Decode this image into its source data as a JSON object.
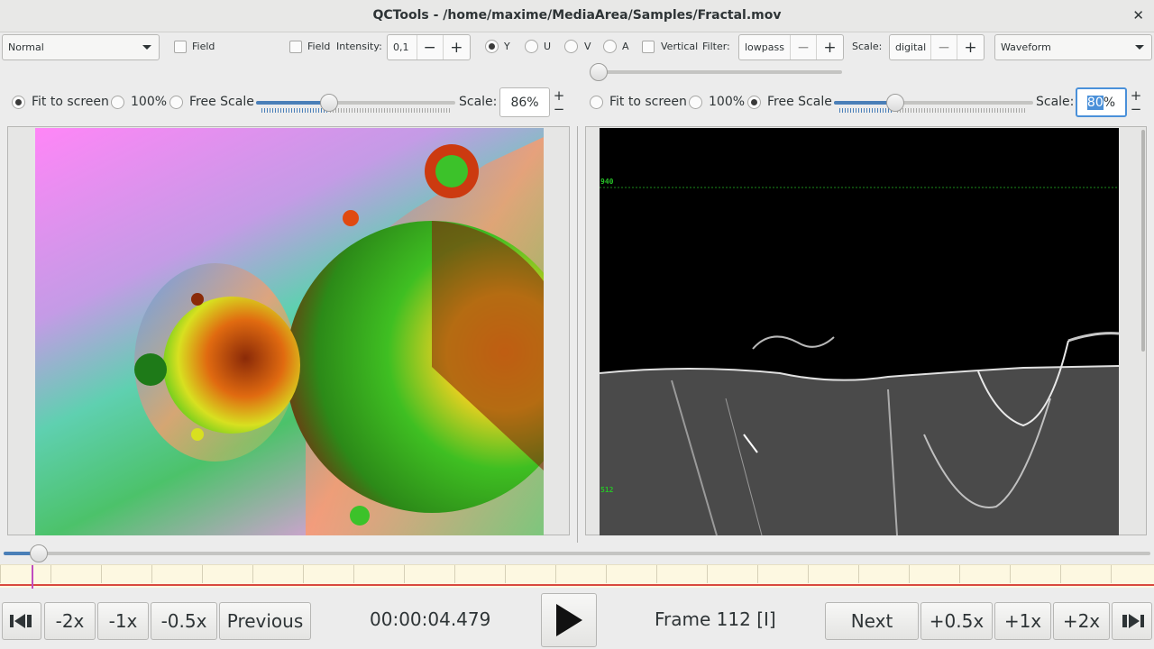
{
  "window": {
    "title": "QCTools - /home/maxime/MediaArea/Samples/Fractal.mov"
  },
  "toolbar": {
    "left_mode": "Normal",
    "left_field": "Field",
    "right_field": "Field",
    "intensity_label": "Intensity:",
    "intensity_value": "0,1",
    "channels": [
      "Y",
      "U",
      "V",
      "A"
    ],
    "selected_channel": "Y",
    "vertical_label": "Vertical",
    "filter_label": "Filter:",
    "filter_value": "lowpass",
    "scale_label": "Scale:",
    "scale_value": "digital",
    "right_mode": "Waveform",
    "minus": "−",
    "plus": "+"
  },
  "left_view": {
    "fit_label": "Fit to screen",
    "pct100_label": "100%",
    "free_label": "Free Scale",
    "selected": "Fit to screen",
    "scale_label": "Scale:",
    "scale_value": "86%"
  },
  "right_view": {
    "fit_label": "Fit to screen",
    "pct100_label": "100%",
    "free_label": "Free Scale",
    "selected": "Free Scale",
    "scale_label": "Scale:",
    "scale_value_sel": "80",
    "scale_value_rest": "%",
    "waveform_labels": [
      "940",
      "512"
    ]
  },
  "transport": {
    "step_back_icon": "step-back-icon",
    "speed_buttons_left": [
      "-2x",
      "-1x",
      "-0.5x"
    ],
    "previous_label": "Previous",
    "timecode": "00:00:04.479",
    "play_icon": "play-icon",
    "frame_label": "Frame 112 [I]",
    "next_label": "Next",
    "speed_buttons_right": [
      "+0.5x",
      "+1x",
      "+2x"
    ],
    "step_forward_icon": "step-forward-icon"
  },
  "colors": {
    "accent": "#4a90d9",
    "slider_fill": "#4a7fb8",
    "timeline_bg": "#fdf8e1",
    "timeline_line": "#d9493f",
    "timeline_cursor": "#c04cc0",
    "waveform_label": "#27c227"
  }
}
